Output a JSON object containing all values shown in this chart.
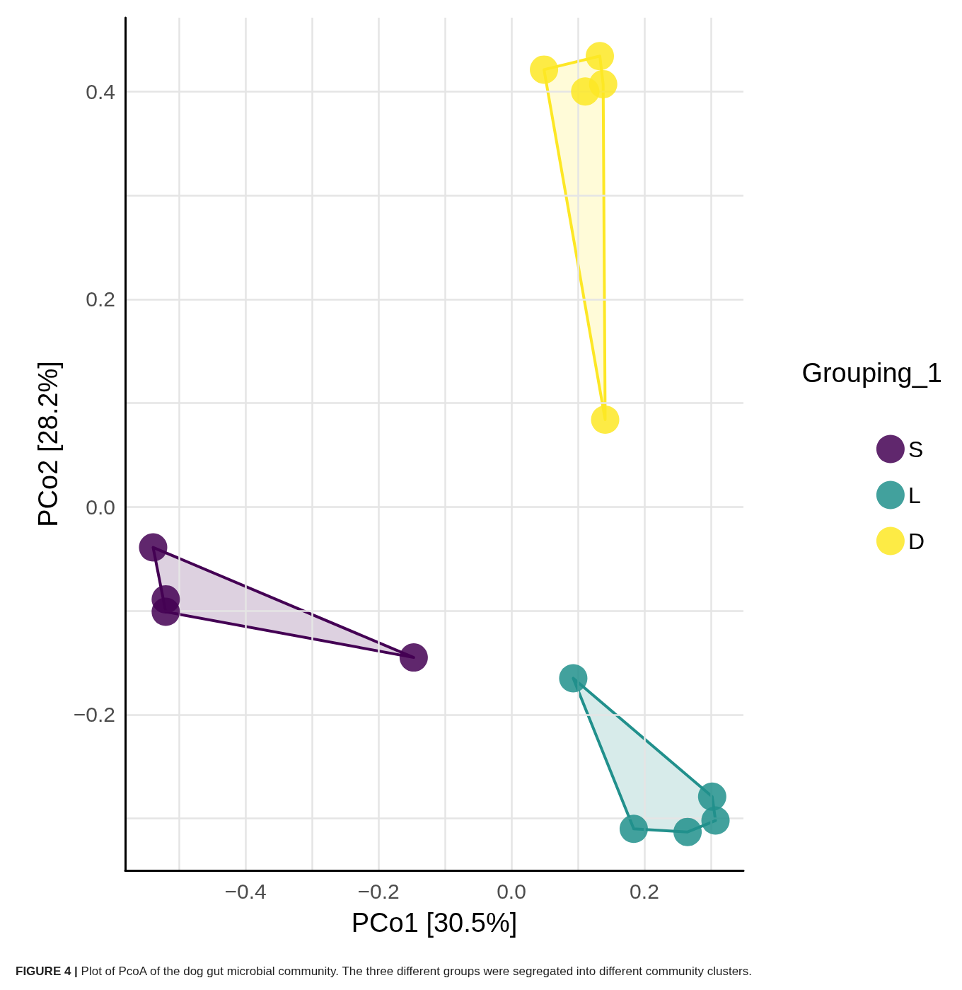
{
  "chart_data": {
    "type": "scatter",
    "xlabel": "PCo1 [30.5%]",
    "ylabel": "PCo2 [28.2%]",
    "legend_title": "Grouping_1",
    "legend": "right",
    "grid": true,
    "marker": "circle",
    "annotations": [
      "FIGURE 4 | Plot of PcoA of the dog gut microbial community. The three different groups were segregated into different community clusters."
    ],
    "xlim": [
      -0.581,
      0.349
    ],
    "ylim": [
      -0.35,
      0.471
    ],
    "xticks": [
      {
        "value": -0.5,
        "label": null
      },
      {
        "value": -0.4,
        "label": "−0.4"
      },
      {
        "value": -0.3,
        "label": null
      },
      {
        "value": -0.2,
        "label": "−0.2"
      },
      {
        "value": -0.1,
        "label": null
      },
      {
        "value": 0,
        "label": "0.0"
      },
      {
        "value": 0.1,
        "label": null
      },
      {
        "value": 0.2,
        "label": "0.2"
      },
      {
        "value": 0.3,
        "label": null
      }
    ],
    "yticks": [
      {
        "value": -0.3,
        "label": null
      },
      {
        "value": -0.2,
        "label": "−0.2"
      },
      {
        "value": -0.1,
        "label": null
      },
      {
        "value": 0,
        "label": "0.0"
      },
      {
        "value": 0.1,
        "label": null
      },
      {
        "value": 0.2,
        "label": "0.2"
      },
      {
        "value": 0.3,
        "label": null
      },
      {
        "value": 0.4,
        "label": "0.4"
      }
    ],
    "series": [
      {
        "name": "S",
        "color": "#440154",
        "x": [
          -0.539,
          -0.52,
          -0.52,
          -0.147
        ],
        "values": [
          -0.039,
          -0.089,
          -0.101,
          -0.145
        ]
      },
      {
        "name": "L",
        "color": "#21908c",
        "x": [
          0.093,
          0.302,
          0.307,
          0.184,
          0.265
        ],
        "values": [
          -0.165,
          -0.279,
          -0.302,
          -0.31,
          -0.313
        ]
      },
      {
        "name": "D",
        "color": "#fde725",
        "x": [
          0.049,
          0.133,
          0.138,
          0.111,
          0.141
        ],
        "values": [
          0.421,
          0.434,
          0.407,
          0.4,
          0.084
        ]
      }
    ]
  }
}
